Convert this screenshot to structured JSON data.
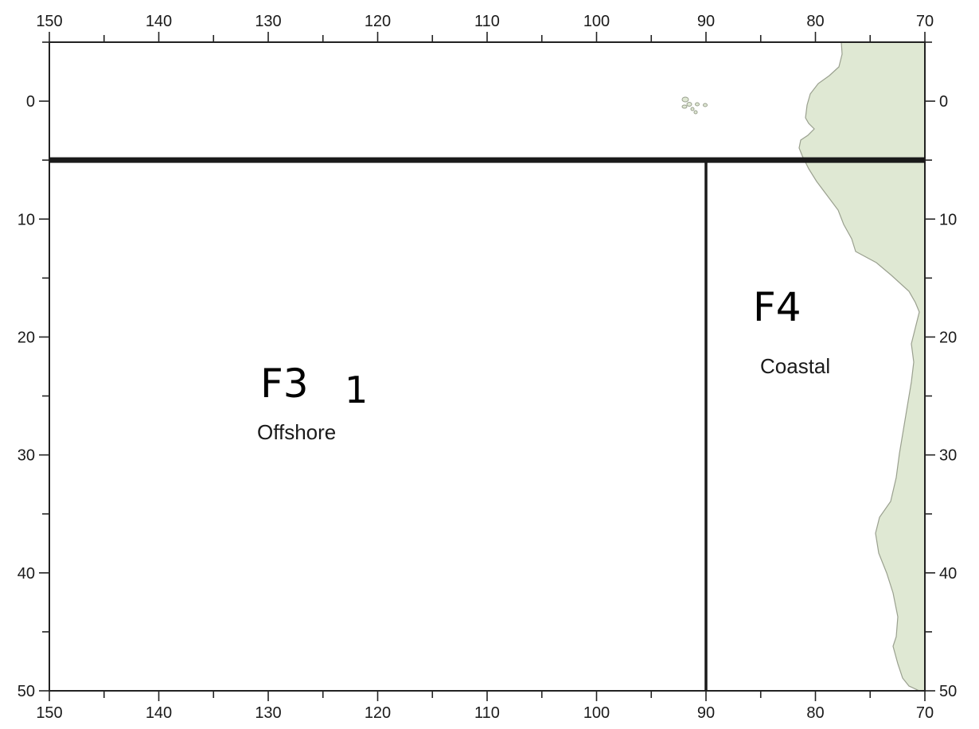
{
  "map": {
    "x_axis": {
      "values": [
        150,
        140,
        130,
        120,
        110,
        100,
        90,
        80,
        70
      ],
      "labels": [
        "150",
        "140",
        "130",
        "120",
        "110",
        "100",
        "90",
        "80",
        "70"
      ],
      "range": [
        150,
        70
      ],
      "minor_step": 5
    },
    "y_axis": {
      "values": [
        0,
        10,
        20,
        30,
        40,
        50
      ],
      "labels": [
        "0",
        "10",
        "20",
        "30",
        "40",
        "50"
      ],
      "range": [
        -5,
        50
      ],
      "minor_step": 5
    },
    "boundaries": {
      "horizontal_y": 5,
      "vertical_x": 90
    },
    "zones": [
      {
        "code": "F3",
        "name": "Offshore",
        "marker": "1"
      },
      {
        "code": "F4",
        "name": "Coastal"
      }
    ],
    "colors": {
      "land": "#dfe8d3",
      "coast_outline": "#9aa08f",
      "frame": "#222222",
      "boundary": "#1a1a1a"
    }
  }
}
